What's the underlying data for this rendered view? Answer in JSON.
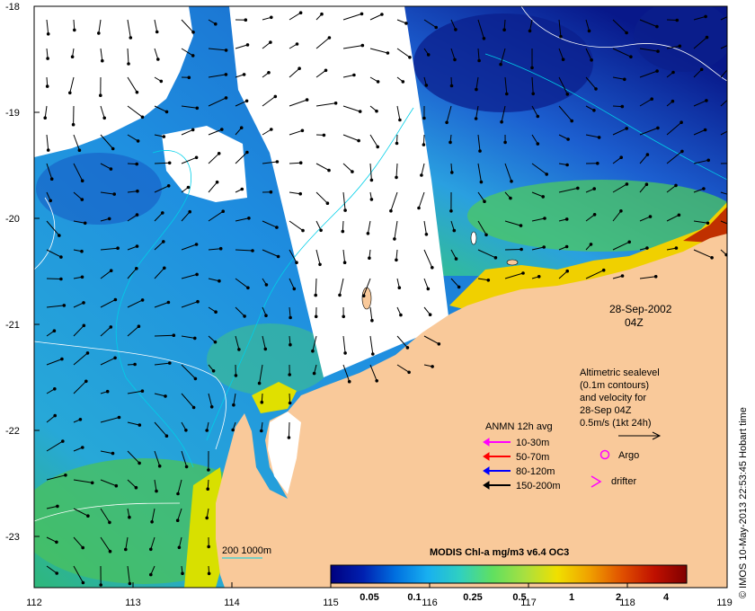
{
  "map": {
    "x_ticks": [
      "112",
      "113",
      "114",
      "115",
      "116",
      "117",
      "118",
      "119"
    ],
    "y_ticks": [
      "-18",
      "-19",
      "-20",
      "-21",
      "-22",
      "-23"
    ],
    "lon_range": [
      112,
      119
    ],
    "lat_range": [
      -23.5,
      -18
    ],
    "colors": {
      "land": "#f9c99a",
      "coast_contour": "#00cfe8",
      "sealevel_contour": "#ffffff",
      "vector": "#000000"
    }
  },
  "date": {
    "day": "28-Sep-2002",
    "time": "04Z"
  },
  "sealevel_note": {
    "line1": "Altimetric sealevel",
    "line2": "(0.1m contours)",
    "line3": "and velocity for",
    "line4": "28-Sep 04Z",
    "line5": "0.5m/s (1kt 24h)"
  },
  "anmn": {
    "title": "ANMN 12h avg",
    "items": [
      {
        "label": "10-30m",
        "color": "#ff00ff"
      },
      {
        "label": "50-70m",
        "color": "#ff0000"
      },
      {
        "label": "80-120m",
        "color": "#0000ff"
      },
      {
        "label": "150-200m",
        "color": "#000000"
      }
    ]
  },
  "markers": {
    "argo": {
      "label": "Argo",
      "color": "#ff00ff",
      "icon": "circle-icon"
    },
    "drifter": {
      "label": "drifter",
      "color": "#ff00ff",
      "icon": "chevron-icon"
    }
  },
  "depth_legend": {
    "label": "200  1000m"
  },
  "colorbar": {
    "title": "MODIS Chl-a mg/m3 v6.4 OC3",
    "ticks": [
      "0.05",
      "0.1",
      "0.25",
      "0.5",
      "1",
      "2",
      "4"
    ],
    "ramp": [
      "#00007f",
      "#0020b0",
      "#0070e0",
      "#18b0f0",
      "#30d0c0",
      "#60e060",
      "#a8e040",
      "#f0e000",
      "#f0a000",
      "#e05000",
      "#c01000",
      "#800000"
    ]
  },
  "credit": "© IMOS 10-May-2013 22:53:45 Hobart time"
}
